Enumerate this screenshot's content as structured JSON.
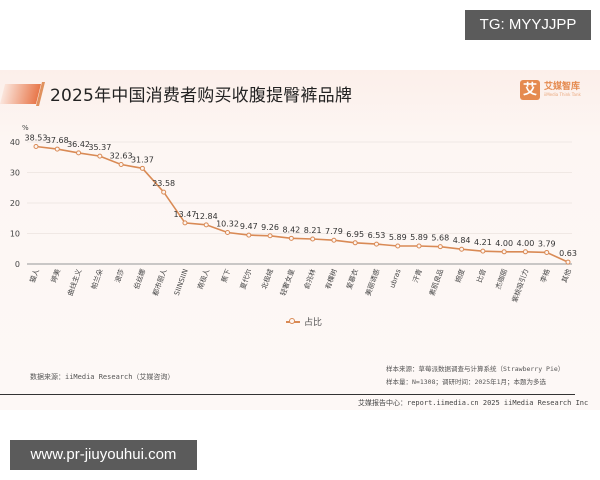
{
  "watermarks": {
    "top": "TG: MYYJJPP",
    "bottom": "www.pr-jiuyouhui.com"
  },
  "header": {
    "title": "2025年中国消费者购买收腹提臀裤品牌",
    "logo_mark": "艾",
    "logo_cn": "艾媒智库",
    "logo_en": "iiMedia Think Tank"
  },
  "legend": {
    "label": "占比"
  },
  "sources": {
    "data_source": "数据来源：iiMedia Research（艾媒咨询）",
    "sample_source": "样本来源：草莓派数据调查与计算系统（Strawberry Pie）",
    "sample_info": "样本量：N=1308；调研时间：2025年1月；本题为多选"
  },
  "footer": {
    "text": "艾媒报告中心：report.iimedia.cn 2025 iiMedia Research Inc"
  },
  "colors": {
    "line": "#d98a55",
    "accent": "#e8774a",
    "grid": "#ebe3df",
    "axis": "#aaaaaa"
  },
  "chart_data": {
    "type": "line",
    "title": "2025年中国消费者购买收腹提臀裤品牌",
    "xlabel": "",
    "ylabel": "%",
    "ylim": [
      0,
      40
    ],
    "yticks": [
      0,
      10,
      20,
      30,
      40
    ],
    "grid": true,
    "legend_position": "bottom-center",
    "categories": [
      "猫人",
      "婷美",
      "曲线主义",
      "帕兰朵",
      "浪莎",
      "伯丝娜",
      "都市丽人",
      "SIINSIIN",
      "南极人",
      "蕉下",
      "夏代尔",
      "北极绒",
      "轻奢女皇",
      "俞兆林",
      "有棵树",
      "爱慕衣",
      "美丽诱惑",
      "ubras",
      "汗青",
      "素肌良品",
      "婉度",
      "比音",
      "杰咖丽",
      "紫桃吸引力",
      "李格",
      "其他"
    ],
    "series": [
      {
        "name": "占比",
        "values": [
          38.53,
          37.68,
          36.42,
          35.37,
          32.63,
          31.37,
          23.58,
          13.47,
          12.84,
          10.32,
          9.47,
          9.26,
          8.42,
          8.21,
          7.79,
          6.95,
          6.53,
          5.89,
          5.89,
          5.68,
          4.84,
          4.21,
          4.0,
          4.0,
          3.79,
          0.63
        ]
      }
    ]
  }
}
